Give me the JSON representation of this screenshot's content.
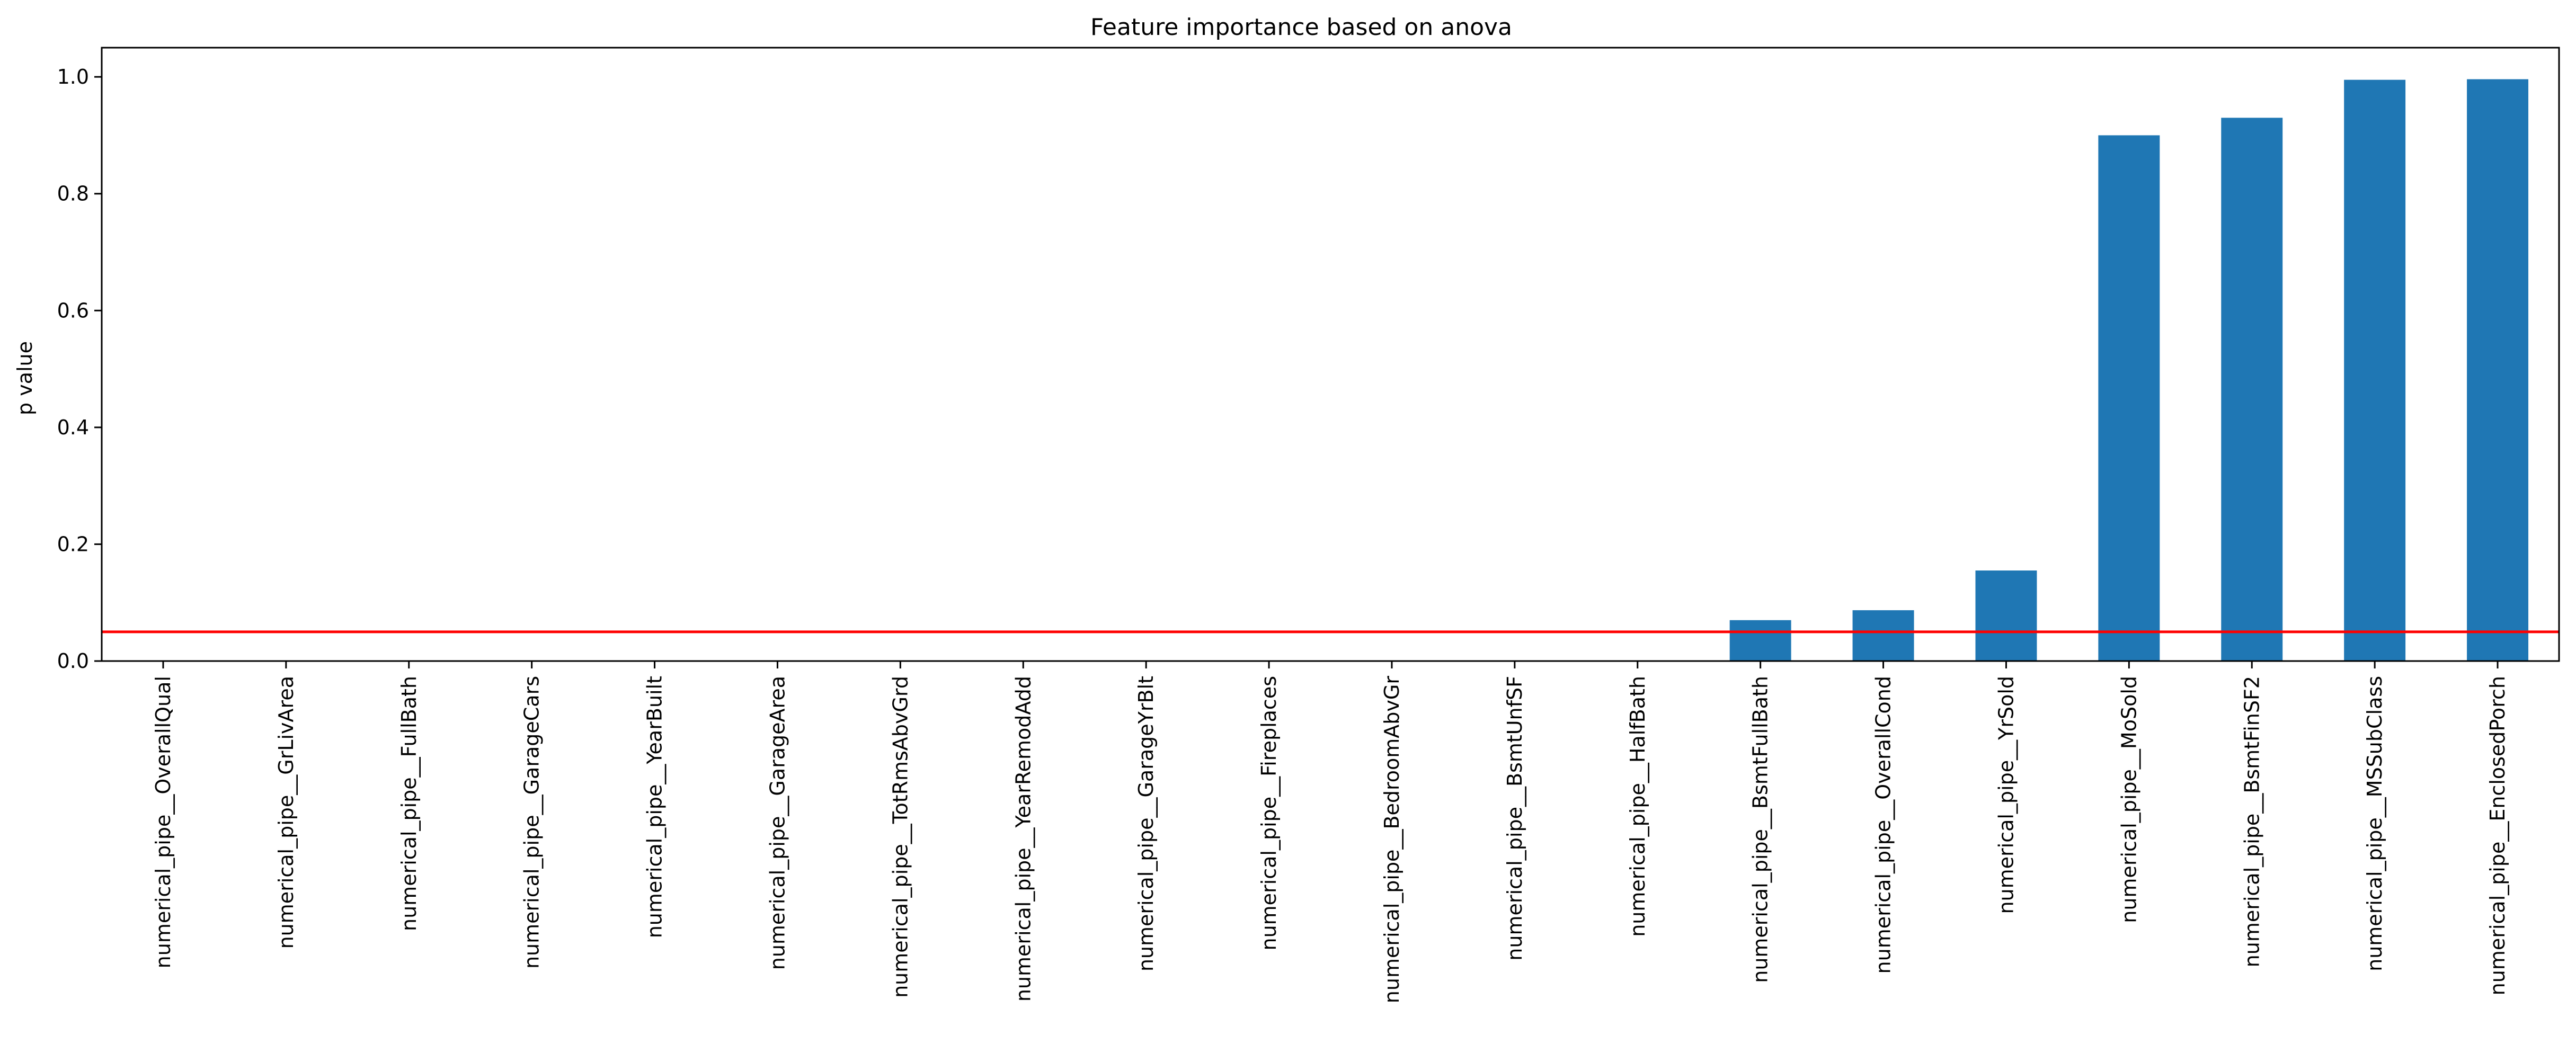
{
  "chart_data": {
    "type": "bar",
    "title": "Feature importance based on anova",
    "xlabel": "",
    "ylabel": "p value",
    "ylim": [
      0,
      1.05
    ],
    "yticks": [
      0.0,
      0.2,
      0.4,
      0.6,
      0.8,
      1.0
    ],
    "ytick_labels": [
      "0.0",
      "0.2",
      "0.4",
      "0.6",
      "0.8",
      "1.0"
    ],
    "grid": false,
    "legend": "none",
    "bar_color": "#1f77b4",
    "threshold": {
      "value": 0.05,
      "color": "#ff0000"
    },
    "categories": [
      "numerical_pipe__OverallQual",
      "numerical_pipe__GrLivArea",
      "numerical_pipe__FullBath",
      "numerical_pipe__GarageCars",
      "numerical_pipe__YearBuilt",
      "numerical_pipe__GarageArea",
      "numerical_pipe__TotRmsAbvGrd",
      "numerical_pipe__YearRemodAdd",
      "numerical_pipe__GarageYrBlt",
      "numerical_pipe__Fireplaces",
      "numerical_pipe__BedroomAbvGr",
      "numerical_pipe__BsmtUnfSF",
      "numerical_pipe__HalfBath",
      "numerical_pipe__BsmtFullBath",
      "numerical_pipe__OverallCond",
      "numerical_pipe__YrSold",
      "numerical_pipe__MoSold",
      "numerical_pipe__BsmtFinSF2",
      "numerical_pipe__MSSubClass",
      "numerical_pipe__EnclosedPorch"
    ],
    "values": [
      0,
      0,
      0,
      0,
      0,
      0,
      0,
      0,
      0,
      0,
      0,
      0,
      0,
      0.07,
      0.087,
      0.155,
      0.9,
      0.93,
      0.995,
      0.996
    ]
  }
}
